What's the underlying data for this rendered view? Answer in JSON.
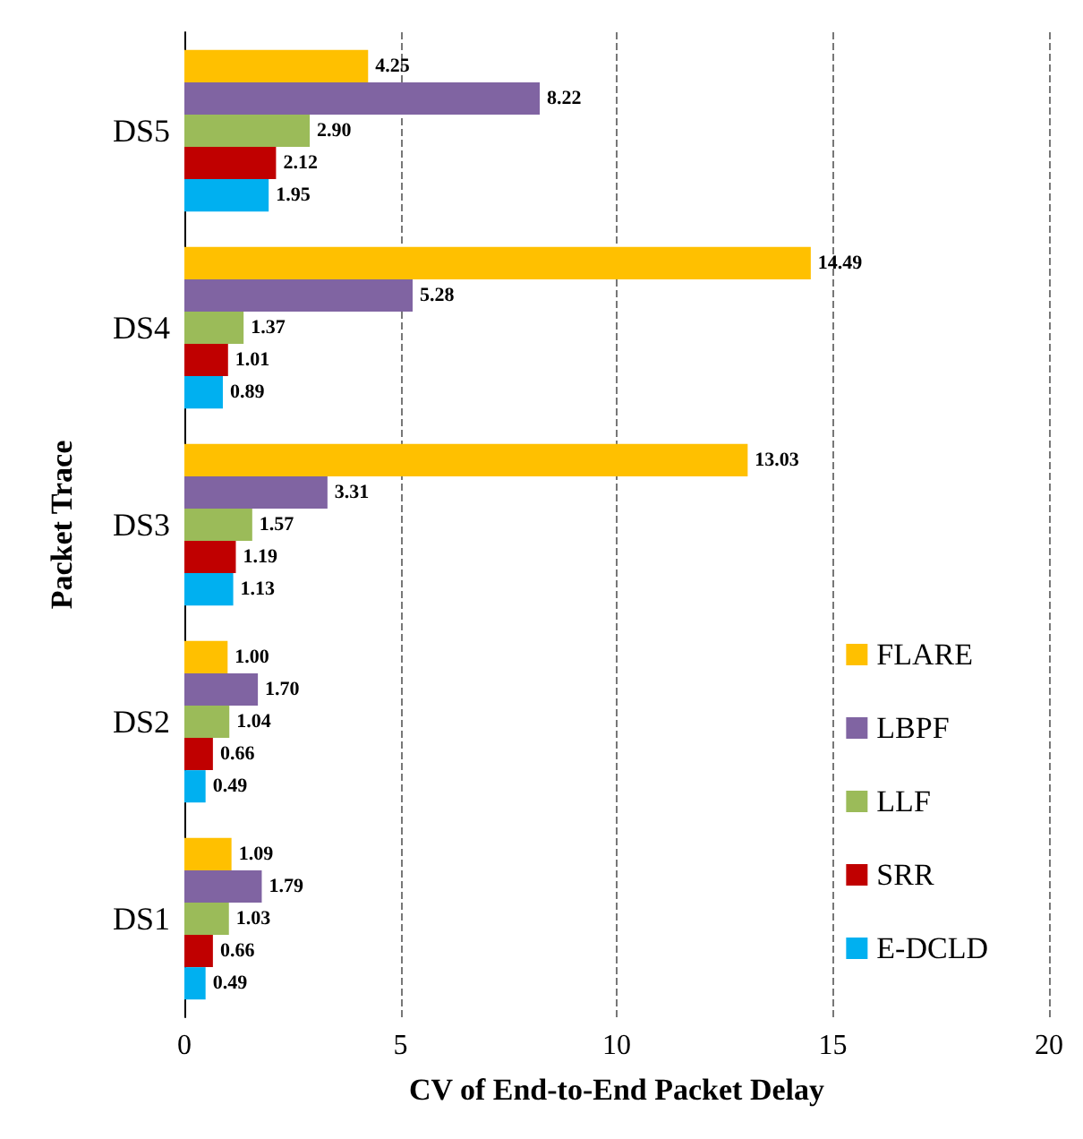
{
  "chart_data": {
    "type": "bar",
    "orientation": "horizontal",
    "xlabel": "CV of End-to-End Packet Delay",
    "ylabel": "Packet Trace",
    "categories": [
      "DS5",
      "DS4",
      "DS3",
      "DS2",
      "DS1"
    ],
    "series": [
      {
        "name": "FLARE",
        "color": "#ffc000",
        "values": [
          4.25,
          14.49,
          13.03,
          1.0,
          1.09
        ],
        "value_labels": [
          "4.25",
          "14.49",
          "13.03",
          "1.00",
          "1.09"
        ]
      },
      {
        "name": "LBPF",
        "color": "#8064a2",
        "values": [
          8.22,
          5.28,
          3.31,
          1.7,
          1.79
        ],
        "value_labels": [
          "8.22",
          "5.28",
          "3.31",
          "1.70",
          "1.79"
        ]
      },
      {
        "name": "LLF",
        "color": "#9bbb59",
        "values": [
          2.9,
          1.37,
          1.57,
          1.04,
          1.03
        ],
        "value_labels": [
          "2.90",
          "1.37",
          "1.57",
          "1.04",
          "1.03"
        ]
      },
      {
        "name": "SRR",
        "color": "#c00000",
        "values": [
          2.12,
          1.01,
          1.19,
          0.66,
          0.66
        ],
        "value_labels": [
          "2.12",
          "1.01",
          "1.19",
          "0.66",
          "0.66"
        ]
      },
      {
        "name": "E-DCLD",
        "color": "#00b0f0",
        "values": [
          1.95,
          0.89,
          1.13,
          0.49,
          0.49
        ],
        "value_labels": [
          "1.95",
          "0.89",
          "1.13",
          "0.49",
          "0.49"
        ]
      }
    ],
    "xlim": [
      0,
      20
    ],
    "xticks": [
      0,
      5,
      10,
      15,
      20
    ],
    "grid": "x",
    "legend": "bottom right"
  }
}
